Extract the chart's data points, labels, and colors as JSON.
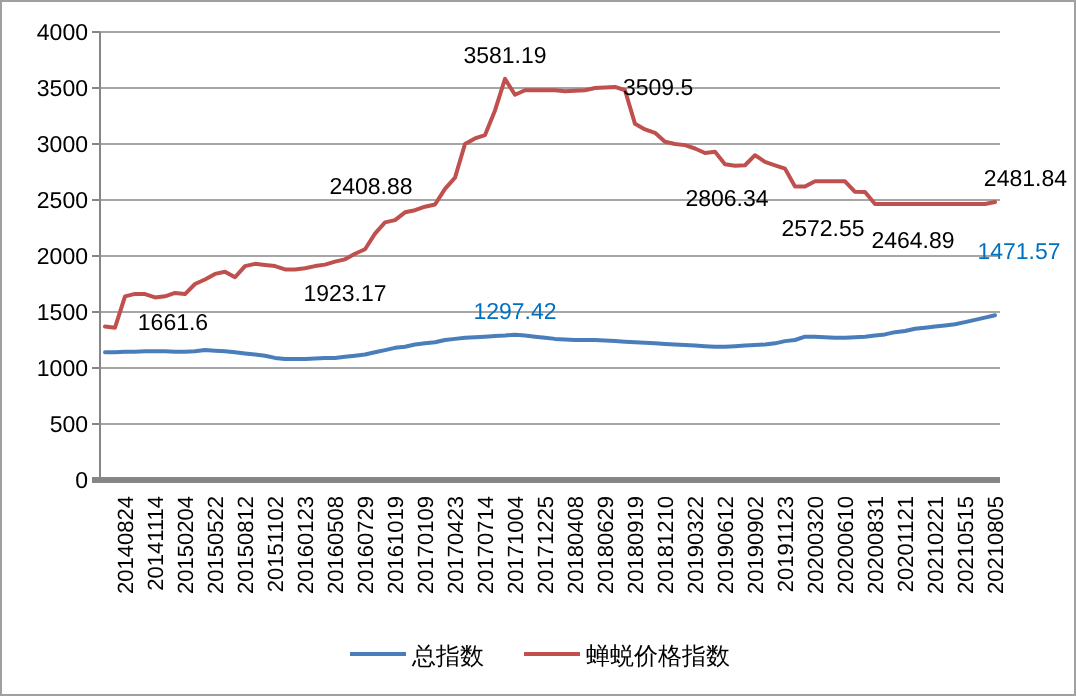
{
  "chart_data": {
    "type": "line",
    "categories": [
      null,
      null,
      "20140824",
      null,
      null,
      "20141114",
      null,
      null,
      "20150204",
      null,
      null,
      "20150522",
      null,
      null,
      "20150812",
      null,
      null,
      "20151102",
      null,
      null,
      "20160123",
      null,
      null,
      "20160508",
      null,
      null,
      "20160729",
      null,
      null,
      "20161019",
      null,
      null,
      "20170109",
      null,
      null,
      "20170423",
      null,
      null,
      "20170714",
      null,
      null,
      "20171004",
      null,
      null,
      "20171225",
      null,
      null,
      "20180408",
      null,
      null,
      "20180629",
      null,
      null,
      "20180919",
      null,
      null,
      "20181210",
      null,
      null,
      "20190322",
      null,
      null,
      "20190612",
      null,
      null,
      "20190902",
      null,
      null,
      "20191123",
      null,
      null,
      "20200320",
      null,
      null,
      "20200610",
      null,
      null,
      "20200831",
      null,
      null,
      "20201121",
      null,
      null,
      "20210221",
      null,
      null,
      "20210515",
      null,
      null,
      "20210805"
    ],
    "series": [
      {
        "name": "总指数",
        "color": "#4a7ebb",
        "values": [
          1140,
          1140,
          1145,
          1145,
          1150,
          1150,
          1150,
          1145,
          1145,
          1150,
          1160,
          1155,
          1150,
          1140,
          1130,
          1120,
          1110,
          1090,
          1080,
          1080,
          1080,
          1085,
          1090,
          1090,
          1100,
          1110,
          1120,
          1140,
          1160,
          1180,
          1190,
          1210,
          1220,
          1230,
          1250,
          1260,
          1270,
          1275,
          1280,
          1285,
          1290,
          1297.42,
          1290,
          1280,
          1270,
          1260,
          1255,
          1250,
          1250,
          1250,
          1245,
          1240,
          1235,
          1230,
          1225,
          1220,
          1215,
          1210,
          1205,
          1200,
          1195,
          1190,
          1190,
          1195,
          1200,
          1205,
          1210,
          1220,
          1240,
          1250,
          1280,
          1280,
          1275,
          1270,
          1270,
          1275,
          1280,
          1290,
          1300,
          1320,
          1330,
          1350,
          1360,
          1370,
          1380,
          1390,
          1410,
          1430,
          1450,
          1471.57
        ],
        "value_labels": [
          null,
          null,
          null,
          null,
          null,
          null,
          null,
          null,
          null,
          null,
          null,
          null,
          null,
          null,
          null,
          null,
          null,
          null,
          null,
          null,
          null,
          null,
          null,
          null,
          null,
          null,
          null,
          null,
          null,
          null,
          null,
          null,
          null,
          null,
          null,
          null,
          null,
          null,
          null,
          null,
          null,
          "1297.42",
          null,
          null,
          null,
          null,
          null,
          null,
          null,
          null,
          null,
          null,
          null,
          null,
          null,
          null,
          null,
          null,
          null,
          null,
          null,
          null,
          null,
          null,
          null,
          null,
          null,
          null,
          null,
          null,
          null,
          null,
          null,
          null,
          null,
          null,
          null,
          null,
          null,
          null,
          null,
          null,
          null,
          null,
          null,
          null,
          null,
          null,
          null,
          "1471.57"
        ]
      },
      {
        "name": "蝉蜕价格指数",
        "color": "#c0504d",
        "values": [
          1370,
          1360,
          1640,
          1661.6,
          1660,
          1630,
          1640,
          1670,
          1660,
          1750,
          1790,
          1840,
          1860,
          1810,
          1910,
          1930,
          1920,
          1910,
          1880,
          1880,
          1890,
          1910,
          1923.17,
          1950,
          1970,
          2020,
          2060,
          2200,
          2300,
          2320,
          2390,
          2408.88,
          2440,
          2460,
          2600,
          2700,
          3000,
          3050,
          3080,
          3300,
          3581.19,
          3440,
          3480,
          3480,
          3480,
          3480,
          3470,
          3475,
          3480,
          3500,
          3505,
          3509.5,
          3480,
          3180,
          3130,
          3100,
          3020,
          3000,
          2990,
          2960,
          2920,
          2930,
          2820,
          2806.34,
          2810,
          2900,
          2840,
          2810,
          2780,
          2620,
          2620,
          2667,
          2667,
          2667,
          2667,
          2572.55,
          2572,
          2464.89,
          2465,
          2465,
          2465,
          2465,
          2465,
          2465,
          2465,
          2465,
          2465,
          2465,
          2465,
          2481.84
        ],
        "value_labels": [
          null,
          null,
          null,
          "1661.6",
          null,
          null,
          null,
          null,
          null,
          null,
          null,
          null,
          null,
          null,
          null,
          null,
          null,
          null,
          null,
          null,
          null,
          null,
          "1923.17",
          null,
          null,
          null,
          null,
          null,
          null,
          null,
          null,
          "2408.88",
          null,
          null,
          null,
          null,
          null,
          null,
          null,
          null,
          "3581.19",
          null,
          null,
          null,
          null,
          null,
          null,
          null,
          null,
          null,
          null,
          "3509.5",
          null,
          null,
          null,
          null,
          null,
          null,
          null,
          null,
          null,
          null,
          null,
          "2806.34",
          null,
          null,
          null,
          null,
          null,
          null,
          null,
          null,
          null,
          null,
          null,
          "2572.55",
          null,
          "2464.89",
          null,
          null,
          null,
          null,
          null,
          null,
          null,
          null,
          null,
          null,
          null,
          "2481.84"
        ]
      }
    ],
    "ylim": [
      0,
      4000
    ],
    "yticks": [
      0,
      500,
      1000,
      1500,
      2000,
      2500,
      3000,
      3500,
      4000
    ],
    "grid": "y",
    "legend": "bottom",
    "marker": "none",
    "line_style": "solid"
  }
}
